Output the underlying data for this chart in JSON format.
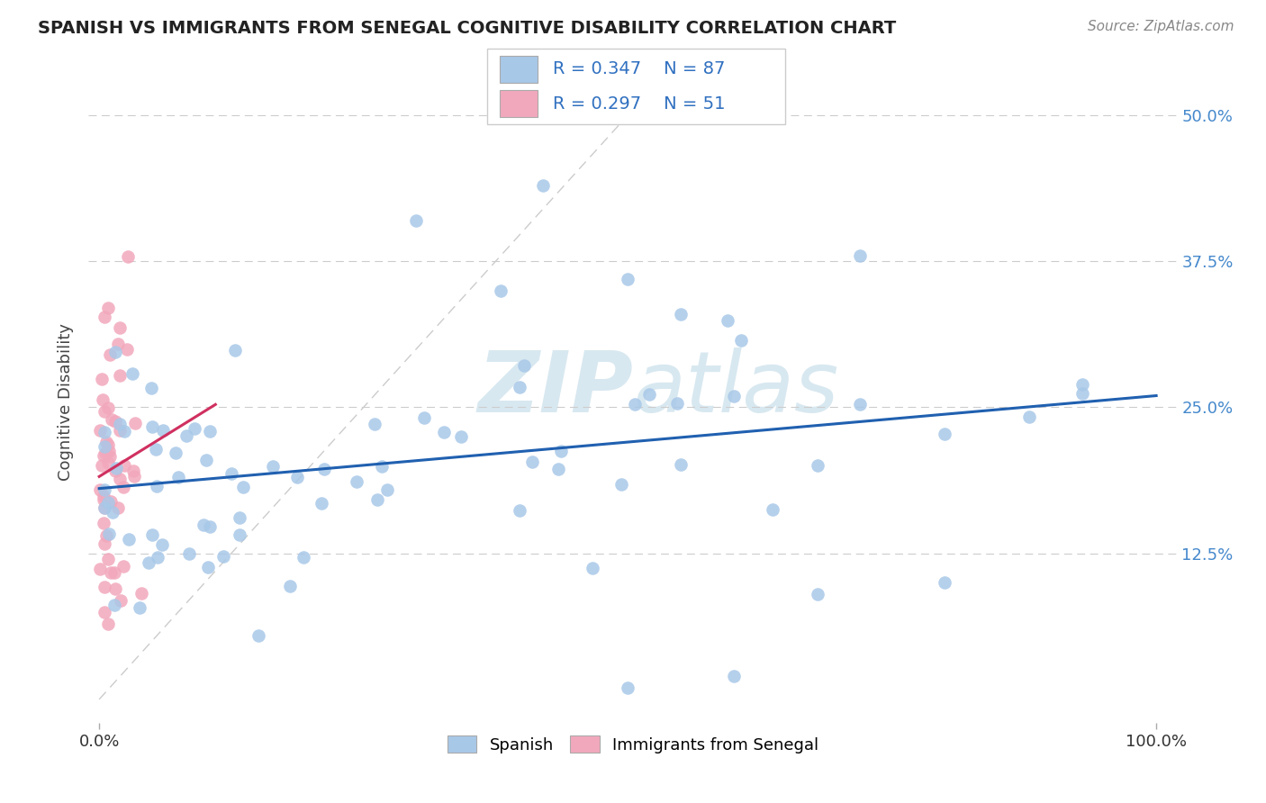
{
  "title": "SPANISH VS IMMIGRANTS FROM SENEGAL COGNITIVE DISABILITY CORRELATION CHART",
  "source": "Source: ZipAtlas.com",
  "ylabel": "Cognitive Disability",
  "legend_R1": "R = 0.347",
  "legend_N1": "N = 87",
  "legend_R2": "R = 0.297",
  "legend_N2": "N = 51",
  "spanish_color": "#a8c8e8",
  "senegal_color": "#f2a8bc",
  "spanish_line_color": "#2060b0",
  "senegal_line_color": "#d03060",
  "diag_line_color": "#cccccc",
  "background_color": "#ffffff",
  "watermark_color": "#d8e8f0",
  "legend_text_color": "#3070c0",
  "right_tick_color": "#4488cc",
  "title_color": "#222222",
  "source_color": "#888888",
  "ylabel_color": "#444444",
  "y_ticks": [
    0.125,
    0.25,
    0.375,
    0.5
  ],
  "y_tick_labels": [
    "12.5%",
    "25.0%",
    "37.5%",
    "50.0%"
  ],
  "xlim": [
    -0.01,
    1.02
  ],
  "ylim": [
    -0.02,
    0.53
  ]
}
